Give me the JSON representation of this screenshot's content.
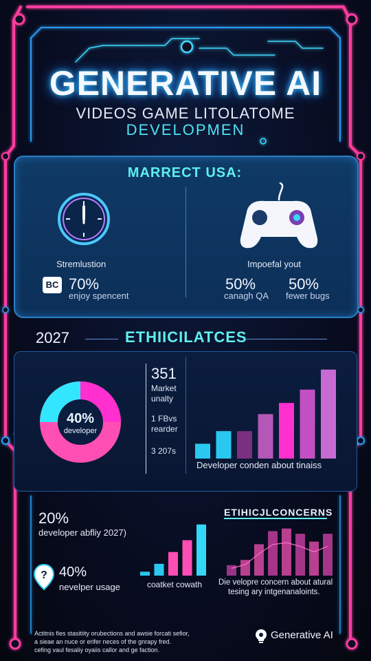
{
  "header": {
    "title": "GENERATIVE AI",
    "subtitle_line1": "VIDEOS GAME LITOLATOME",
    "subtitle_line2": "DEVELOPMEN"
  },
  "market_panel": {
    "title": "MARRECT USA:",
    "left": {
      "icon": "clock-icon",
      "label": "Stremlustion",
      "badge": "BC",
      "percent": "70%",
      "note": "enjoy spencent"
    },
    "right": {
      "icon": "gamepad-icon",
      "label": "Impoefal yout",
      "stats": [
        {
          "percent": "50%",
          "note": "canagh QA"
        },
        {
          "percent": "50%",
          "note": "fewer bugs"
        }
      ]
    }
  },
  "ethics_section": {
    "year": "2027",
    "heading": "ETHIICILATCES",
    "donut": {
      "percent": "40%",
      "label": "developer",
      "colors": [
        "#ff2fd0",
        "#33e6ff",
        "#ff4fb4"
      ]
    },
    "stats": {
      "value1": "351",
      "value1_label_a": "Market",
      "value1_label_b": "unalty",
      "value2_a": "1 FBvs",
      "value2_b": "rearder",
      "value3": "3 207s"
    },
    "bar_caption": "Developer conden about tinaiss"
  },
  "chart_data": [
    {
      "type": "bar",
      "title": "",
      "caption": "Developer conden about tinaiss",
      "values": [
        20,
        37,
        37,
        60,
        75,
        93,
        120
      ],
      "colors": [
        "#2ac8f0",
        "#2ac8f0",
        "#7a2f80",
        "#b457b8",
        "#ff2fd0",
        "#c34fc4",
        "#c86ad4"
      ],
      "ylim": [
        0,
        130
      ]
    },
    {
      "type": "bar",
      "title": "",
      "caption": "coatket cowath",
      "values": [
        5,
        15,
        30,
        45,
        65
      ],
      "colors": [
        "#2ac8f0",
        "#2ac8f0",
        "#ff4fb4",
        "#ff4fb4",
        "#33d8f5"
      ],
      "ylim": [
        0,
        70
      ]
    },
    {
      "type": "bar",
      "title": "ETIHICJLCONCERNS",
      "caption_line1": "Die velopre concern about atural",
      "caption_line2": "tesing ary intgenanaloints.",
      "values": [
        20,
        30,
        60,
        85,
        90,
        80,
        65,
        80
      ],
      "colors": [
        "#9a3388",
        "#b8408f",
        "#b8408f",
        "#a43588",
        "#b8408f",
        "#a43588",
        "#b8408f",
        "#a43588"
      ],
      "ylim": [
        0,
        100
      ]
    }
  ],
  "lower_left": {
    "percent1": "20%",
    "caption1": "developer abfliy 2027)",
    "icon": "question-pin-icon",
    "percent2": "40%",
    "caption2": "nevelper usage"
  },
  "footer": {
    "line1": "Actitnis fies stasitiity orubections and awsie forcati sefior,",
    "line2": "a sieae an nuce or erifer neces of the gnrapy fred.",
    "line3": "cefing vaul fesaliy oyaiis callor and ge faction.",
    "brand_icon": "lightbulb-icon",
    "brand": "Generative AI"
  }
}
